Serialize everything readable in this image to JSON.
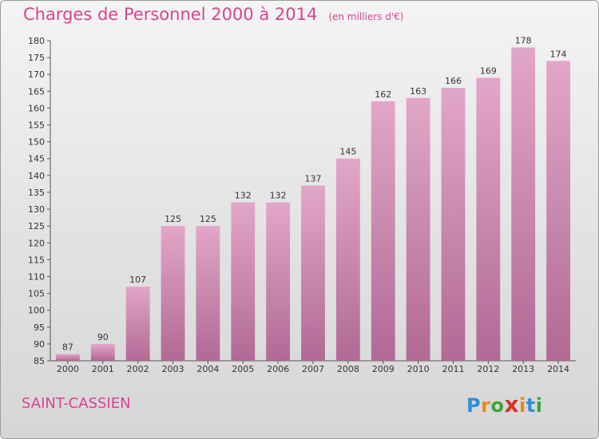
{
  "header": {
    "title": "Charges de Personnel 2000 à 2014",
    "subtitle": "(en milliers d'€)"
  },
  "footer": {
    "commune": "SAINT-CASSIEN",
    "logo_letters": [
      "P",
      "r",
      "o",
      "x",
      "i",
      "t",
      "i"
    ],
    "logo_colors": [
      "#2f8fd6",
      "#e8891a",
      "#3aa63a",
      "#d6322b",
      "#e8891a",
      "#2f8fd6",
      "#3aa63a"
    ]
  },
  "colors": {
    "bar": "#c57aa5",
    "text_accent": "#d9438f"
  },
  "chart_data": {
    "type": "bar",
    "title": "Charges de Personnel 2000 à 2014",
    "subtitle": "(en milliers d'€)",
    "xlabel": "",
    "ylabel": "",
    "categories": [
      "2000",
      "2001",
      "2002",
      "2003",
      "2004",
      "2005",
      "2006",
      "2007",
      "2008",
      "2009",
      "2010",
      "2011",
      "2012",
      "2013",
      "2014"
    ],
    "values": [
      87,
      90,
      107,
      125,
      125,
      132,
      132,
      137,
      145,
      162,
      163,
      166,
      169,
      178,
      174
    ],
    "ylim": [
      85,
      180
    ],
    "yticks": [
      85,
      90,
      95,
      100,
      105,
      110,
      115,
      120,
      125,
      130,
      135,
      140,
      145,
      150,
      155,
      160,
      165,
      170,
      175,
      180
    ],
    "grid": false,
    "legend": "none"
  }
}
